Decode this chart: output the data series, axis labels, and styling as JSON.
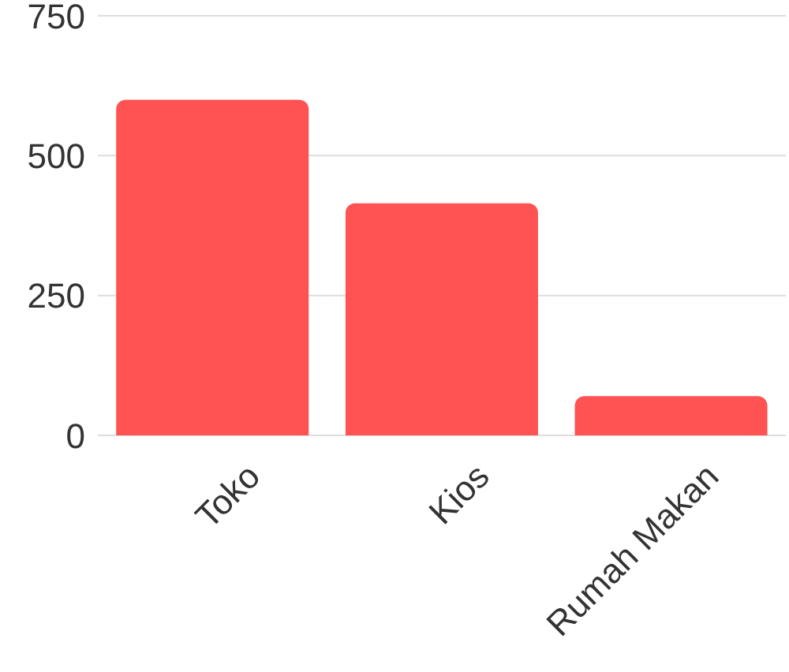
{
  "chart_data": {
    "type": "bar",
    "categories": [
      "Toko",
      "Kios",
      "Rumah Makan"
    ],
    "values": [
      600,
      415,
      70
    ],
    "color": "#ff5252",
    "ylim": [
      0,
      750
    ],
    "yticks": [
      0,
      250,
      500,
      750
    ],
    "grid": "y"
  }
}
